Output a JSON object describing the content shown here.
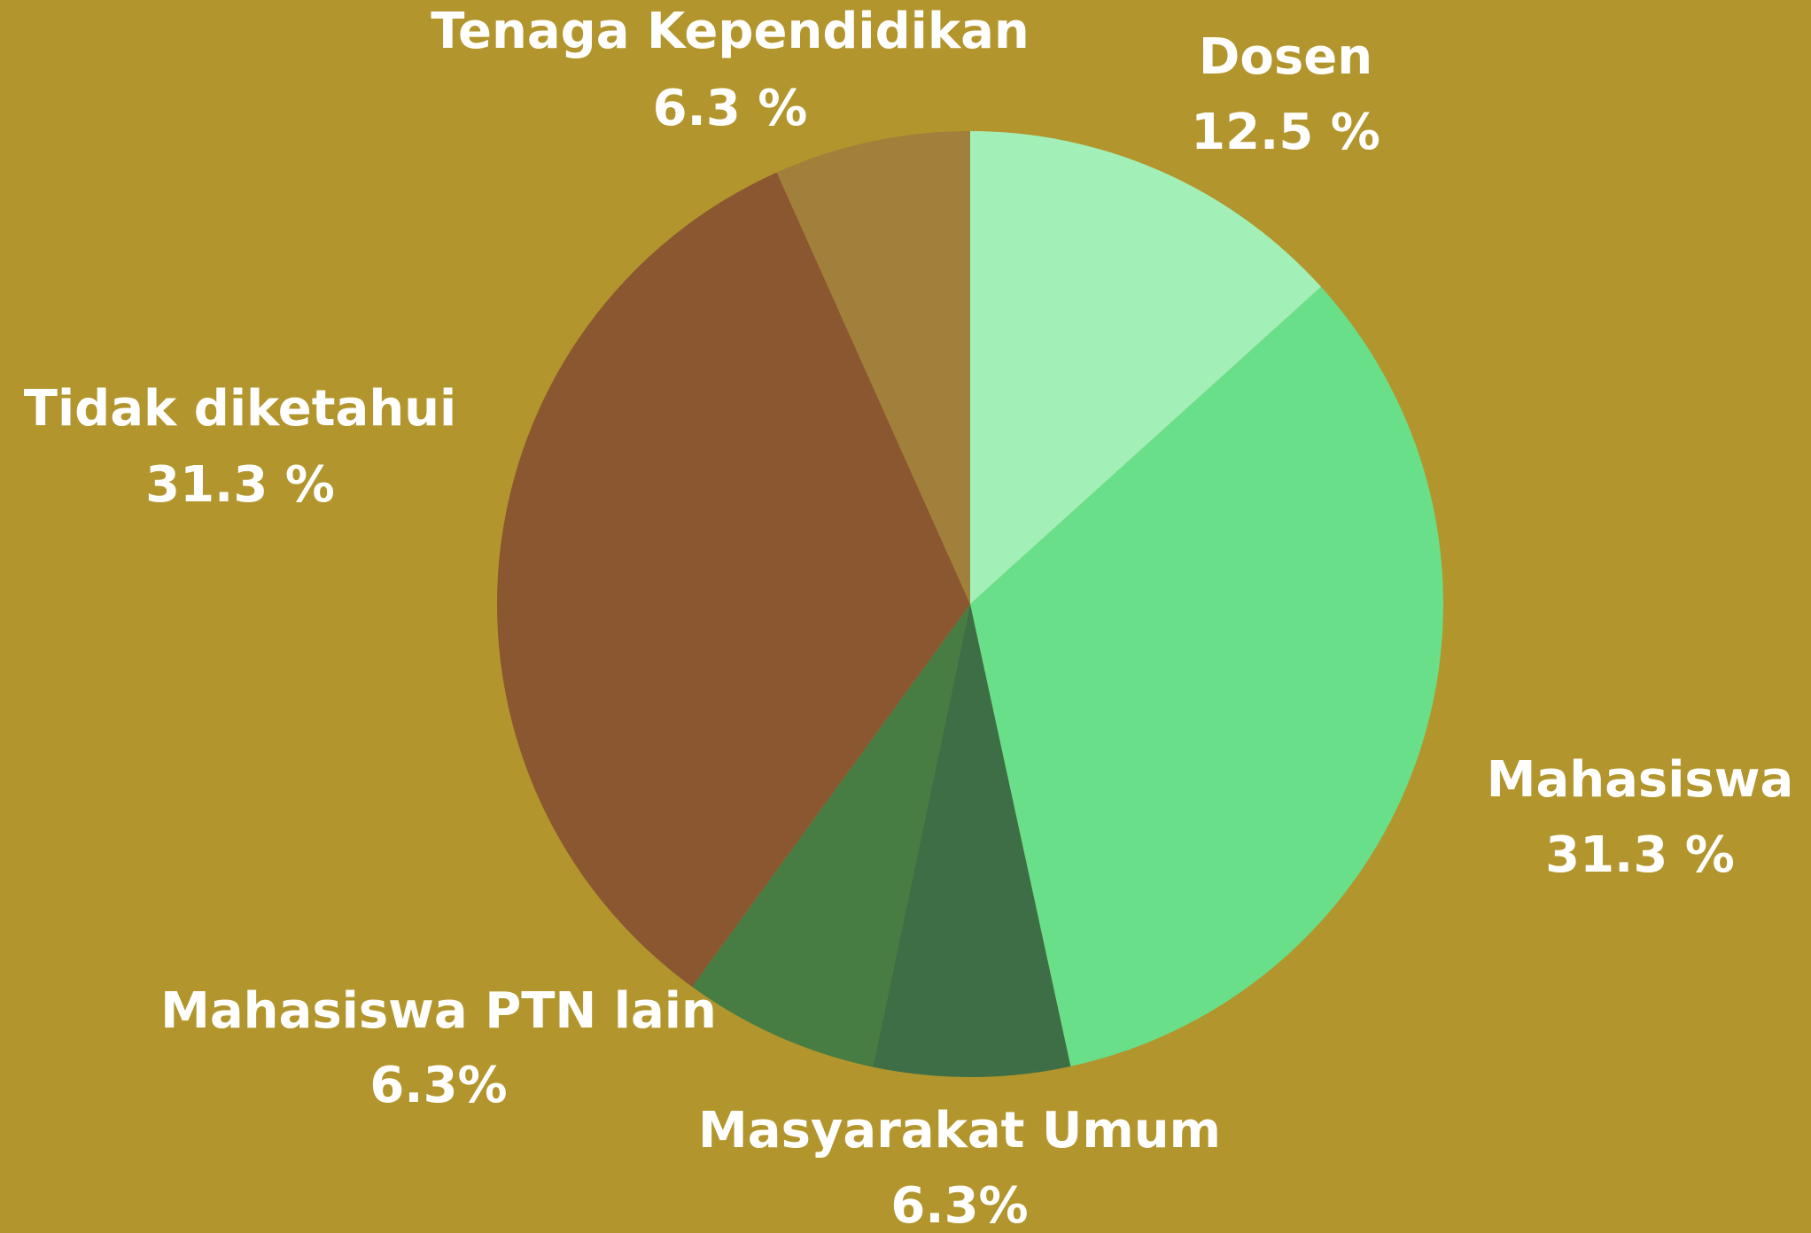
{
  "chart_data": {
    "type": "pie",
    "categories": [
      "Dosen",
      "Mahasiswa",
      "Masyarakat Umum",
      "Mahasiswa PTN lain",
      "Tidak diketahui",
      "Tenaga Kependidikan"
    ],
    "values": [
      12.5,
      31.3,
      6.3,
      6.3,
      31.3,
      6.3
    ],
    "value_labels": [
      "12.5 %",
      "31.3 %",
      "6.3%",
      "6.3%",
      "31.3 %",
      "6.3 %"
    ],
    "colors": [
      "#a2f0b8",
      "#69df89",
      "#3d6e45",
      "#477c43",
      "#8b5731",
      "#a0803a"
    ]
  }
}
